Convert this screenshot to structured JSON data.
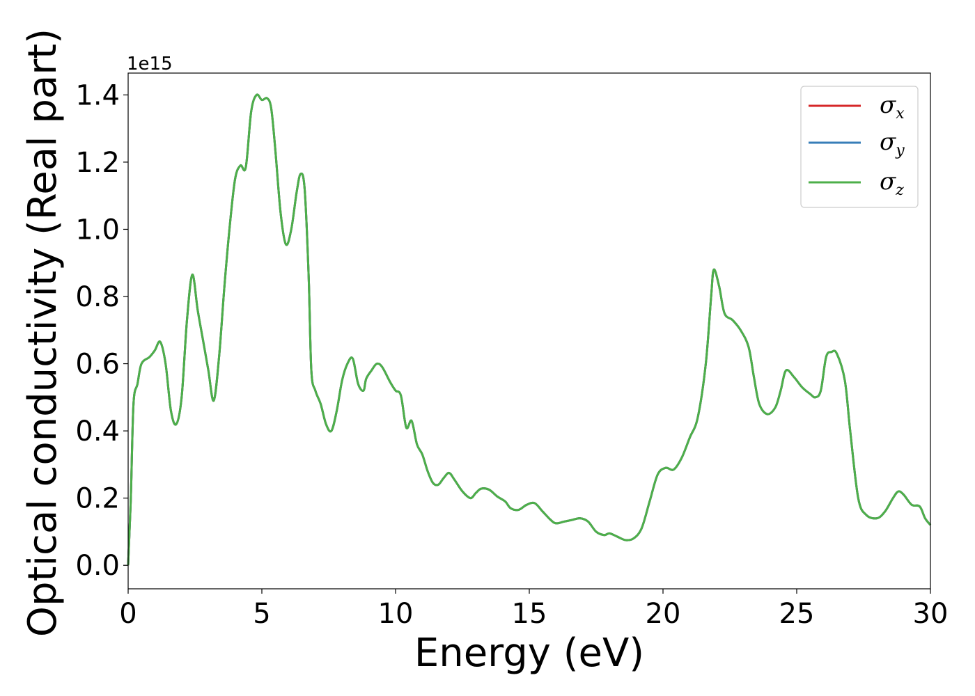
{
  "chart_data": {
    "type": "line",
    "xlabel": "Energy (eV)",
    "ylabel": "Optical conductivity (Real part)",
    "y_offset_text": "1e15",
    "xlim": [
      0,
      30
    ],
    "ylim": [
      -0.07,
      1.465
    ],
    "y_scale_factor": 1000000000000000.0,
    "x_ticks": [
      0,
      5,
      10,
      15,
      20,
      25,
      30
    ],
    "x_tick_labels": [
      "0",
      "5",
      "10",
      "15",
      "20",
      "25",
      "30"
    ],
    "y_ticks": [
      0.0,
      0.2,
      0.4,
      0.6,
      0.8,
      1.0,
      1.2,
      1.4
    ],
    "y_tick_labels": [
      "0.0",
      "0.2",
      "0.4",
      "0.6",
      "0.8",
      "1.0",
      "1.2",
      "1.4"
    ],
    "grid": false,
    "legend_position": "top-right",
    "series": [
      {
        "name": "σx",
        "symbol": "σ",
        "subscript": "x",
        "color": "#d62728"
      },
      {
        "name": "σy",
        "symbol": "σ",
        "subscript": "y",
        "color": "#377eb8"
      },
      {
        "name": "σz",
        "symbol": "σ",
        "subscript": "z",
        "color": "#4daf4a"
      }
    ],
    "x": [
      0,
      0.1,
      0.2,
      0.35,
      0.5,
      0.8,
      1.0,
      1.2,
      1.4,
      1.6,
      1.8,
      2.0,
      2.2,
      2.4,
      2.6,
      2.8,
      3.0,
      3.2,
      3.4,
      3.6,
      3.8,
      4.0,
      4.2,
      4.4,
      4.6,
      4.8,
      5.0,
      5.2,
      5.35,
      5.5,
      5.7,
      5.9,
      6.1,
      6.3,
      6.45,
      6.6,
      6.75,
      6.85,
      7.0,
      7.2,
      7.4,
      7.6,
      7.8,
      8.0,
      8.2,
      8.4,
      8.6,
      8.8,
      8.9,
      9.1,
      9.3,
      9.5,
      9.8,
      10.0,
      10.2,
      10.4,
      10.6,
      10.8,
      11.0,
      11.2,
      11.4,
      11.6,
      11.8,
      12.0,
      12.2,
      12.5,
      12.8,
      13.0,
      13.2,
      13.5,
      13.8,
      14.1,
      14.3,
      14.6,
      14.9,
      15.2,
      15.5,
      15.8,
      16.0,
      16.3,
      16.6,
      16.9,
      17.2,
      17.5,
      17.8,
      18.0,
      18.3,
      18.6,
      18.9,
      19.2,
      19.5,
      19.8,
      20.1,
      20.4,
      20.7,
      21.0,
      21.3,
      21.6,
      21.8,
      21.9,
      22.1,
      22.3,
      22.6,
      22.9,
      23.2,
      23.4,
      23.6,
      23.9,
      24.2,
      24.4,
      24.6,
      24.9,
      25.2,
      25.5,
      25.7,
      25.9,
      26.1,
      26.3,
      26.5,
      26.8,
      27.0,
      27.3,
      27.6,
      28.0,
      28.3,
      28.6,
      28.8,
      29.0,
      29.3,
      29.6,
      29.8,
      30.0
    ],
    "y": [
      0.0,
      0.2,
      0.48,
      0.54,
      0.6,
      0.62,
      0.64,
      0.665,
      0.6,
      0.46,
      0.42,
      0.5,
      0.73,
      0.865,
      0.76,
      0.67,
      0.58,
      0.49,
      0.62,
      0.83,
      1.01,
      1.15,
      1.19,
      1.185,
      1.35,
      1.4,
      1.385,
      1.39,
      1.36,
      1.24,
      1.05,
      0.955,
      1.0,
      1.11,
      1.165,
      1.12,
      0.86,
      0.58,
      0.52,
      0.48,
      0.42,
      0.4,
      0.46,
      0.55,
      0.6,
      0.615,
      0.54,
      0.52,
      0.555,
      0.58,
      0.6,
      0.59,
      0.545,
      0.52,
      0.505,
      0.41,
      0.43,
      0.36,
      0.33,
      0.28,
      0.245,
      0.24,
      0.26,
      0.275,
      0.255,
      0.22,
      0.2,
      0.215,
      0.228,
      0.225,
      0.205,
      0.19,
      0.17,
      0.165,
      0.18,
      0.185,
      0.16,
      0.135,
      0.125,
      0.13,
      0.135,
      0.14,
      0.13,
      0.1,
      0.09,
      0.095,
      0.085,
      0.075,
      0.08,
      0.11,
      0.19,
      0.27,
      0.29,
      0.285,
      0.32,
      0.38,
      0.44,
      0.6,
      0.8,
      0.88,
      0.83,
      0.75,
      0.73,
      0.7,
      0.65,
      0.56,
      0.48,
      0.45,
      0.47,
      0.52,
      0.58,
      0.56,
      0.53,
      0.51,
      0.5,
      0.52,
      0.62,
      0.635,
      0.63,
      0.55,
      0.4,
      0.2,
      0.15,
      0.14,
      0.16,
      0.2,
      0.22,
      0.21,
      0.18,
      0.175,
      0.14,
      0.12
    ]
  }
}
